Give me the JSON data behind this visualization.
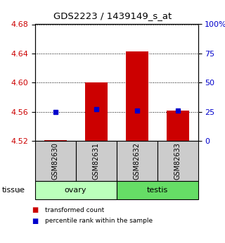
{
  "title": "GDS2223 / 1439149_s_at",
  "samples": [
    "GSM82630",
    "GSM82631",
    "GSM82632",
    "GSM82633"
  ],
  "tissue_groups": [
    {
      "label": "ovary",
      "indices": [
        0,
        1
      ],
      "color": "#bbffbb"
    },
    {
      "label": "testis",
      "indices": [
        2,
        3
      ],
      "color": "#66dd66"
    }
  ],
  "transformed_counts": [
    4.521,
    4.6,
    4.643,
    4.562
  ],
  "percentile_ranks": [
    25,
    27,
    26,
    26
  ],
  "ylim_left": [
    4.52,
    4.68
  ],
  "yticks_left": [
    4.52,
    4.56,
    4.6,
    4.64,
    4.68
  ],
  "ylim_right": [
    0,
    100
  ],
  "yticks_right": [
    0,
    25,
    50,
    75,
    100
  ],
  "bar_color": "#cc0000",
  "dot_color": "#0000cc",
  "bar_width": 0.55,
  "baseline": 4.52,
  "left_axis_color": "#cc0000",
  "right_axis_color": "#0000cc",
  "sample_box_color": "#cccccc",
  "legend_items": [
    {
      "color": "#cc0000",
      "label": "transformed count"
    },
    {
      "color": "#0000cc",
      "label": "percentile rank within the sample"
    }
  ]
}
